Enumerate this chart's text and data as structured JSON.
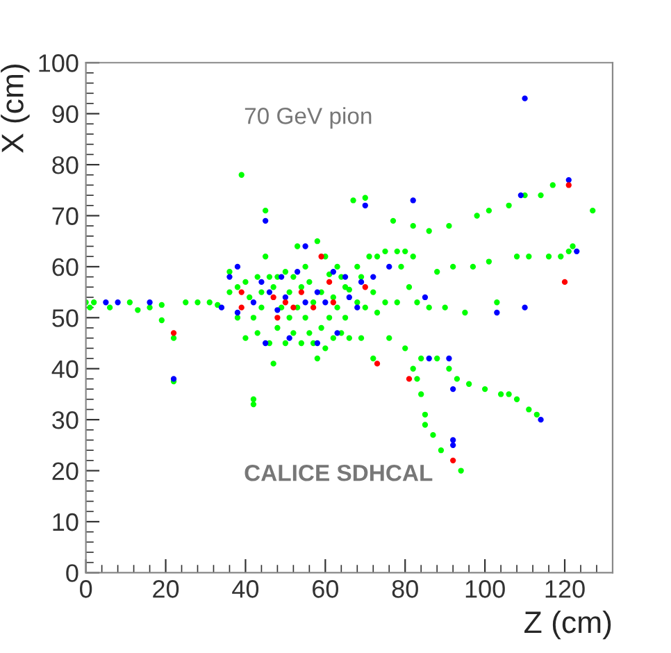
{
  "chart_data": {
    "type": "scatter",
    "xlabel": "Z (cm)",
    "ylabel": "X (cm)",
    "annotations": [
      "70 GeV pion",
      "CALICE SDHCAL"
    ],
    "xlim": [
      0,
      132
    ],
    "ylim": [
      0,
      100
    ],
    "xticks": [
      0,
      20,
      40,
      60,
      80,
      100,
      120
    ],
    "yticks": [
      0,
      10,
      20,
      30,
      40,
      50,
      60,
      70,
      80,
      90,
      100
    ],
    "grid": false,
    "legend": false,
    "marker": "circle",
    "series": [
      {
        "color": "#00ff00",
        "x": [
          0,
          1,
          2,
          6,
          11,
          13,
          16,
          19,
          19,
          22,
          22,
          25,
          28,
          31,
          33,
          36,
          36,
          38,
          38,
          39,
          40,
          40,
          41,
          42,
          42,
          42,
          43,
          43,
          44,
          44,
          45,
          45,
          46,
          46,
          47,
          47,
          48,
          48,
          49,
          50,
          50,
          51,
          51,
          52,
          52,
          53,
          53,
          54,
          54,
          55,
          55,
          56,
          56,
          57,
          57,
          58,
          58,
          59,
          59,
          60,
          60,
          61,
          61,
          62,
          62,
          63,
          63,
          64,
          64,
          65,
          65,
          66,
          66,
          67,
          68,
          68,
          69,
          69,
          70,
          70,
          71,
          72,
          72,
          73,
          73,
          75,
          75,
          76,
          77,
          78,
          78,
          79,
          80,
          80,
          81,
          82,
          82,
          82,
          83,
          83,
          84,
          84,
          85,
          85,
          86,
          86,
          87,
          88,
          88,
          89,
          90,
          91,
          91,
          92,
          93,
          94,
          95,
          96,
          97,
          98,
          100,
          101,
          101,
          103,
          104,
          106,
          106,
          108,
          108,
          110,
          111,
          111,
          113,
          114,
          116,
          117,
          119,
          121,
          122,
          127
        ],
        "values": [
          53,
          52,
          53,
          52,
          53,
          51.5,
          52,
          52.5,
          49.5,
          46,
          37.5,
          53,
          53,
          53,
          52.5,
          59,
          55,
          56,
          50,
          78,
          57,
          46,
          54,
          33,
          34,
          50,
          58,
          47,
          55,
          52,
          62,
          71,
          58,
          45,
          41,
          56,
          58,
          48,
          52,
          59,
          45,
          55,
          50,
          58,
          47,
          64,
          52,
          56,
          45,
          60,
          50,
          57,
          47,
          53,
          45,
          65,
          42,
          55,
          48,
          62,
          44,
          58.5,
          50,
          54,
          46,
          60,
          52,
          58,
          47,
          56,
          50,
          55.5,
          46,
          73,
          60,
          53,
          58,
          46,
          73.5,
          52,
          62,
          55,
          42,
          62,
          51,
          63,
          53,
          46,
          69,
          63,
          53,
          60,
          63,
          44,
          56,
          68,
          62,
          40,
          53,
          38,
          42,
          35,
          29,
          31,
          67,
          52,
          27,
          42,
          59,
          24,
          52,
          40,
          68,
          60,
          38,
          20,
          51,
          37,
          60,
          70,
          36,
          61,
          71,
          53,
          35,
          35,
          72,
          62,
          34,
          74,
          62,
          32,
          31,
          74,
          62,
          76,
          62,
          63,
          64,
          71
        ]
      },
      {
        "color": "#0000ff",
        "x": [
          5,
          8,
          16,
          22,
          34,
          36,
          38,
          38,
          42,
          44,
          45,
          45,
          46,
          48,
          49,
          50,
          51,
          53,
          55,
          55,
          58,
          58,
          60,
          62,
          63,
          65,
          66,
          68,
          69,
          70,
          72,
          76,
          82,
          85,
          86,
          91,
          92,
          92,
          92,
          103,
          110,
          109,
          110,
          114,
          121,
          123
        ],
        "values": [
          53,
          53,
          53,
          38,
          52,
          58,
          60,
          51,
          53,
          57,
          69,
          45,
          55,
          51.5,
          58,
          54,
          46,
          59,
          64,
          53,
          45,
          55,
          53,
          59,
          47,
          58,
          54,
          52,
          57,
          72,
          58,
          60,
          73,
          54,
          42,
          42,
          36,
          26,
          25,
          51,
          93,
          74,
          52,
          30,
          77,
          63
        ]
      },
      {
        "color": "#ff0000",
        "x": [
          22,
          39,
          39,
          47,
          48,
          50,
          52,
          54,
          57,
          59,
          61,
          62,
          70,
          73,
          81,
          92,
          121,
          120
        ],
        "values": [
          47,
          55,
          52,
          54,
          50,
          53,
          52,
          55,
          52,
          62,
          57,
          53,
          56,
          41,
          38,
          22,
          76,
          57
        ]
      }
    ]
  }
}
